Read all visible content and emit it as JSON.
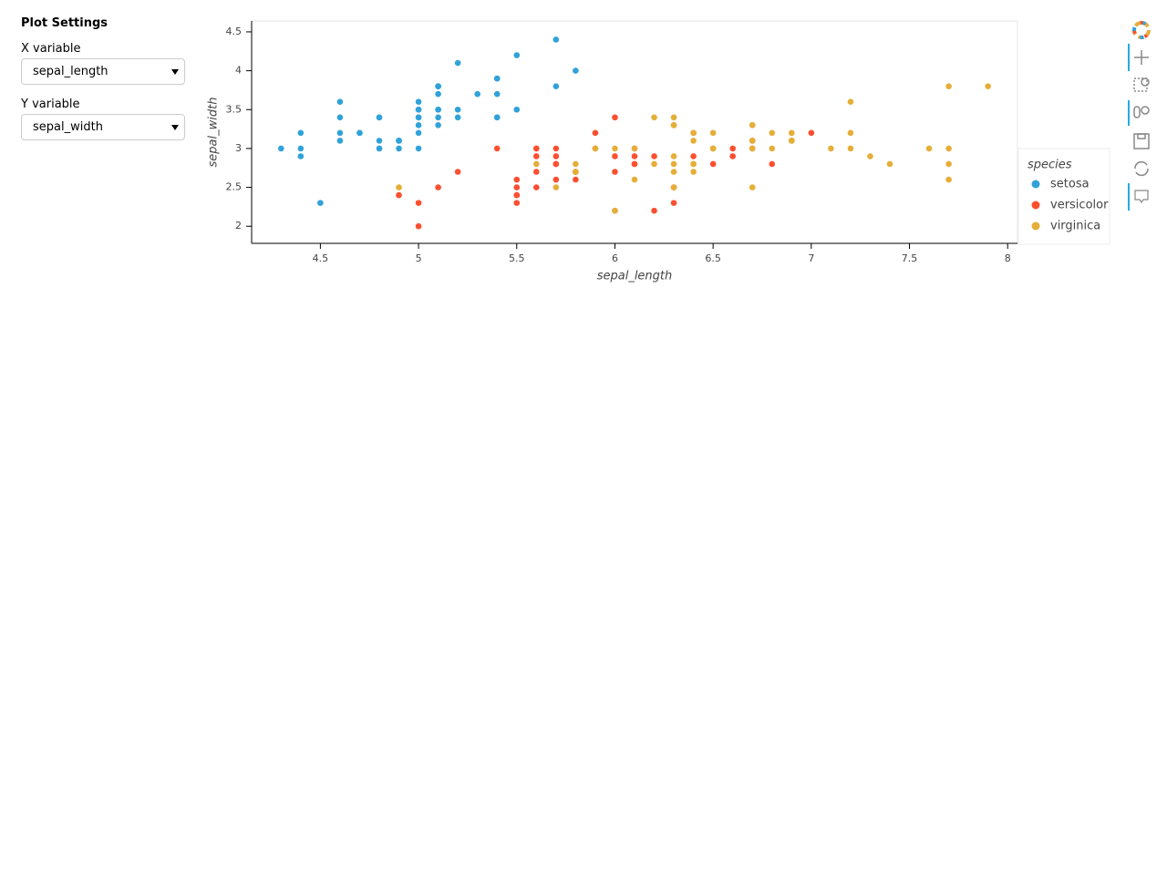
{
  "sidebar": {
    "title": "Plot Settings",
    "x_label": "X variable",
    "x_value": "sepal_length",
    "y_label": "Y variable",
    "y_value": "sepal_width"
  },
  "chart_data": {
    "type": "scatter",
    "x_label": "sepal_length",
    "y_label": "sepal_width",
    "legend_title": "species",
    "legend": "right",
    "xlim": [
      4.15,
      8.05
    ],
    "xticks": [
      4.5,
      5,
      5.5,
      6,
      6.5,
      7,
      7.5,
      8
    ],
    "ylim": [
      1.78,
      4.64
    ],
    "yticks": [
      2,
      2.5,
      3,
      3.5,
      4,
      4.5
    ],
    "series": [
      {
        "name": "setosa",
        "color": "#30a2da",
        "x": [
          5.1,
          4.9,
          4.7,
          4.6,
          5.0,
          5.4,
          4.6,
          5.0,
          4.4,
          4.9,
          5.4,
          4.8,
          4.8,
          4.3,
          5.8,
          5.7,
          5.4,
          5.1,
          5.7,
          5.1,
          5.4,
          5.1,
          4.6,
          5.1,
          4.8,
          5.0,
          5.0,
          5.2,
          5.2,
          4.7,
          4.8,
          5.4,
          5.2,
          5.5,
          4.9,
          5.0,
          5.5,
          4.9,
          4.4,
          5.1,
          5.0,
          4.5,
          4.4,
          5.0,
          5.1,
          4.8,
          5.1,
          4.6,
          5.3,
          5.0
        ],
        "values": [
          3.5,
          3.0,
          3.2,
          3.1,
          3.6,
          3.9,
          3.4,
          3.4,
          2.9,
          3.1,
          3.7,
          3.4,
          3.0,
          3.0,
          4.0,
          4.4,
          3.9,
          3.5,
          3.8,
          3.8,
          3.4,
          3.7,
          3.6,
          3.3,
          3.4,
          3.0,
          3.4,
          3.5,
          3.4,
          3.2,
          3.1,
          3.4,
          4.1,
          4.2,
          3.1,
          3.2,
          3.5,
          3.1,
          3.0,
          3.4,
          3.5,
          2.3,
          3.2,
          3.5,
          3.8,
          3.0,
          3.8,
          3.2,
          3.7,
          3.3
        ]
      },
      {
        "name": "versicolor",
        "color": "#fc4f30",
        "x": [
          7.0,
          6.4,
          6.9,
          5.5,
          6.5,
          5.7,
          6.3,
          4.9,
          6.6,
          5.2,
          5.0,
          5.9,
          6.0,
          6.1,
          5.6,
          6.7,
          5.6,
          5.8,
          6.2,
          5.6,
          5.9,
          6.1,
          6.3,
          6.1,
          6.4,
          6.6,
          6.8,
          6.7,
          6.0,
          5.7,
          5.5,
          5.5,
          5.8,
          6.0,
          5.4,
          6.0,
          6.7,
          6.3,
          5.6,
          5.5,
          5.5,
          6.1,
          5.8,
          5.0,
          5.6,
          5.7,
          5.7,
          6.2,
          5.1,
          5.7
        ],
        "values": [
          3.2,
          3.2,
          3.1,
          2.3,
          2.8,
          2.8,
          3.3,
          2.4,
          2.9,
          2.7,
          2.0,
          3.0,
          2.2,
          2.9,
          2.9,
          3.1,
          3.0,
          2.7,
          2.2,
          2.5,
          3.2,
          2.8,
          2.5,
          2.8,
          2.9,
          3.0,
          2.8,
          3.0,
          2.9,
          2.6,
          2.4,
          2.4,
          2.7,
          2.7,
          3.0,
          3.4,
          3.1,
          2.3,
          3.0,
          2.5,
          2.6,
          3.0,
          2.6,
          2.3,
          2.7,
          3.0,
          2.9,
          2.9,
          2.5,
          2.8
        ]
      },
      {
        "name": "virginica",
        "color": "#e5ae38",
        "x": [
          6.3,
          5.8,
          7.1,
          6.3,
          6.5,
          7.6,
          4.9,
          7.3,
          6.7,
          7.2,
          6.5,
          6.4,
          6.8,
          5.7,
          5.8,
          6.4,
          6.5,
          7.7,
          7.7,
          6.0,
          6.9,
          5.6,
          7.7,
          6.3,
          6.7,
          7.2,
          6.2,
          6.1,
          6.4,
          7.2,
          7.4,
          7.9,
          6.4,
          6.3,
          6.1,
          7.7,
          6.3,
          6.4,
          6.0,
          6.9,
          6.7,
          6.9,
          5.8,
          6.8,
          6.7,
          6.7,
          6.3,
          6.5,
          6.2,
          5.9
        ],
        "values": [
          3.3,
          2.7,
          3.0,
          2.9,
          3.0,
          3.0,
          2.5,
          2.9,
          2.5,
          3.6,
          3.2,
          2.7,
          3.0,
          2.5,
          2.8,
          3.2,
          3.0,
          3.8,
          2.6,
          2.2,
          3.2,
          2.8,
          2.8,
          2.7,
          3.3,
          3.2,
          2.8,
          3.0,
          2.8,
          3.0,
          2.8,
          3.8,
          2.8,
          2.8,
          2.6,
          3.0,
          3.4,
          3.1,
          3.0,
          3.1,
          3.1,
          3.1,
          2.7,
          3.2,
          3.3,
          3.0,
          2.5,
          3.0,
          3.4,
          3.0
        ]
      }
    ]
  }
}
